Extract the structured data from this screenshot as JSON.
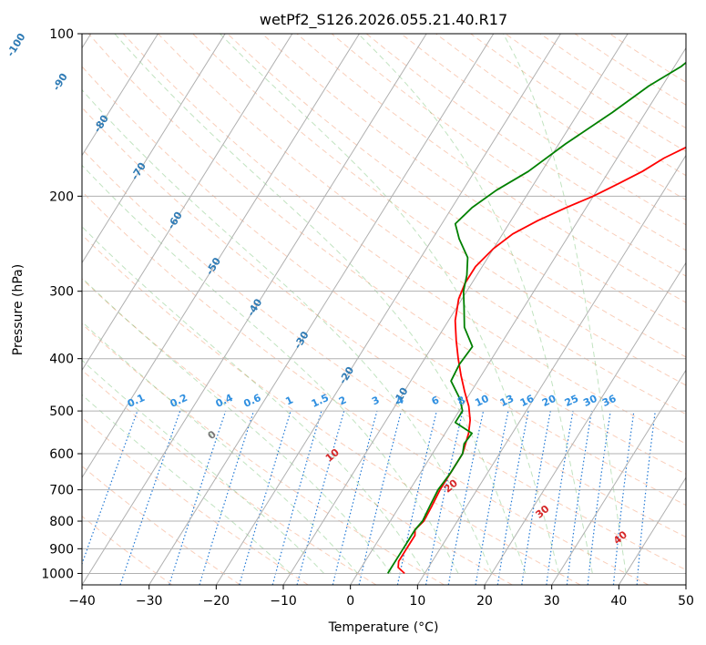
{
  "chart_data": {
    "type": "line",
    "title": "wetPf2_S126.2026.055.21.40.R17",
    "xlabel": "Temperature (°C)",
    "ylabel": "Pressure (hPa)",
    "xlim": [
      -40,
      50
    ],
    "ylim": [
      1050,
      100
    ],
    "y_scale": "log",
    "x_ticks": [
      -40,
      -30,
      -20,
      -10,
      0,
      10,
      20,
      30,
      40,
      50
    ],
    "y_ticks": [
      1000,
      900,
      800,
      700,
      600,
      500,
      400,
      300,
      200,
      100
    ],
    "grid": true,
    "series": [
      {
        "name": "Temperature",
        "color": "#ff0000",
        "points": [
          [
            7,
            1000
          ],
          [
            5.5,
            975
          ],
          [
            5,
            950
          ],
          [
            5,
            900
          ],
          [
            5,
            850
          ],
          [
            4.5,
            830
          ],
          [
            5,
            800
          ],
          [
            4.8,
            750
          ],
          [
            4.5,
            700
          ],
          [
            4.5,
            650
          ],
          [
            4.5,
            600
          ],
          [
            4,
            575
          ],
          [
            3.5,
            550
          ],
          [
            2.5,
            520
          ],
          [
            1,
            490
          ],
          [
            -1,
            460
          ],
          [
            -3,
            430
          ],
          [
            -5,
            400
          ],
          [
            -7,
            370
          ],
          [
            -9,
            340
          ],
          [
            -10.5,
            310
          ],
          [
            -11,
            290
          ],
          [
            -11,
            270
          ],
          [
            -10,
            250
          ],
          [
            -8.5,
            235
          ],
          [
            -6,
            222
          ],
          [
            -3,
            210
          ],
          [
            0,
            200
          ],
          [
            2.5,
            190
          ],
          [
            5,
            180
          ],
          [
            7,
            170
          ],
          [
            10,
            160
          ],
          [
            13,
            150
          ],
          [
            16,
            140
          ],
          [
            19,
            130
          ],
          [
            21,
            120
          ],
          [
            23,
            110
          ],
          [
            24,
            105
          ],
          [
            25,
            100
          ]
        ]
      },
      {
        "name": "Dewpoint",
        "color": "#008000",
        "points": [
          [
            4.5,
            1000
          ],
          [
            4.5,
            975
          ],
          [
            4.5,
            950
          ],
          [
            4.5,
            900
          ],
          [
            4.5,
            850
          ],
          [
            4.5,
            830
          ],
          [
            4.8,
            800
          ],
          [
            4.5,
            750
          ],
          [
            4.2,
            700
          ],
          [
            4.5,
            650
          ],
          [
            4.5,
            600
          ],
          [
            3.8,
            575
          ],
          [
            4,
            550
          ],
          [
            0.5,
            525
          ],
          [
            0.5,
            500
          ],
          [
            -1,
            475
          ],
          [
            -4,
            440
          ],
          [
            -4.3,
            410
          ],
          [
            -4,
            380
          ],
          [
            -7,
            350
          ],
          [
            -9,
            320
          ],
          [
            -10.5,
            300
          ],
          [
            -11.5,
            280
          ],
          [
            -13,
            260
          ],
          [
            -16,
            240
          ],
          [
            -18,
            225
          ],
          [
            -17,
            210
          ],
          [
            -15,
            195
          ],
          [
            -12,
            180
          ],
          [
            -9,
            160
          ],
          [
            -5,
            140
          ],
          [
            -2,
            125
          ],
          [
            1,
            115
          ],
          [
            3,
            105
          ],
          [
            4,
            100
          ]
        ]
      }
    ],
    "isotherm_labels": [
      "-100",
      "-90",
      "-80",
      "-70",
      "-60",
      "-50",
      "-40",
      "-30",
      "-20",
      "-10"
    ],
    "mixing_ratio_labels": [
      "0.1",
      "0.2",
      "0.4",
      "0.6",
      "1",
      "1.5",
      "2",
      "3",
      "4",
      "6",
      "8",
      "10",
      "13",
      "16",
      "20",
      "25",
      "30",
      "36"
    ],
    "moist_adiabat_labels": [
      "0",
      "10",
      "20",
      "30",
      "40"
    ]
  }
}
